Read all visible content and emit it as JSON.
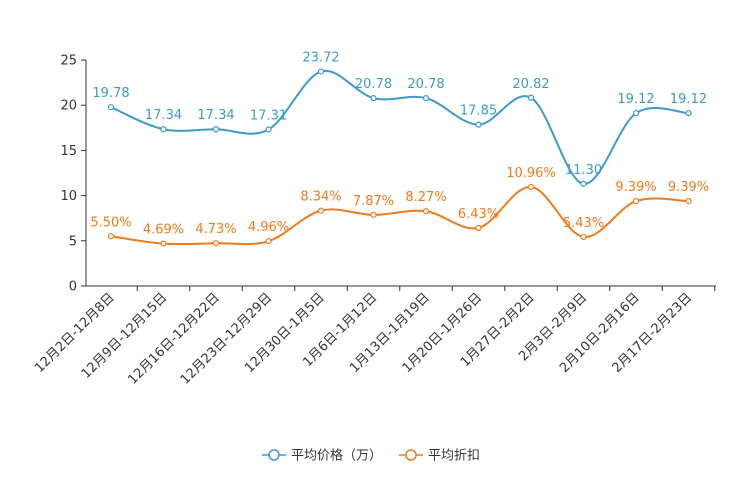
{
  "chart_data": {
    "type": "line",
    "title": "",
    "xlabel": "",
    "ylabel": "",
    "ylim": [
      0,
      25
    ],
    "yticks": [
      0,
      5,
      10,
      15,
      20,
      25
    ],
    "grid": false,
    "legend_position": "bottom-center",
    "categories": [
      "12月2日-12月8日",
      "12月9日-12月15日",
      "12月16日-12月22日",
      "12月23日-12月29日",
      "12月30日-1月5日",
      "1月6日-1月12日",
      "1月13日-1月19日",
      "1月20日-1月26日",
      "1月27日-2月2日",
      "2月3日-2月9日",
      "2月10日-2月16日",
      "2月17日-2月23日"
    ],
    "series": [
      {
        "name": "平均价格（万）",
        "color": "#3c9bc9",
        "values": [
          19.78,
          17.34,
          17.34,
          17.31,
          23.72,
          20.78,
          20.78,
          17.85,
          20.82,
          11.3,
          19.12,
          19.12
        ],
        "labels": [
          "19.78",
          "17.34",
          "17.34",
          "17.31",
          "23.72",
          "20.78",
          "20.78",
          "17.85",
          "20.82",
          "11.30",
          "19.12",
          "19.12"
        ]
      },
      {
        "name": "平均折扣",
        "color": "#f07b1b",
        "values": [
          5.5,
          4.69,
          4.73,
          4.96,
          8.34,
          7.87,
          8.27,
          6.43,
          10.96,
          5.43,
          9.39,
          9.39
        ],
        "labels": [
          "5.50%",
          "4.69%",
          "4.73%",
          "4.96%",
          "8.34%",
          "7.87%",
          "8.27%",
          "6.43%",
          "10.96%",
          "5.43%",
          "9.39%",
          "9.39%"
        ]
      }
    ]
  }
}
